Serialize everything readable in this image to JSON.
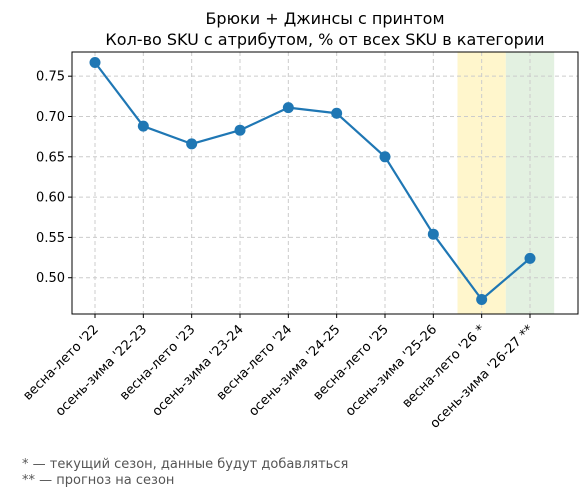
{
  "chart_data": {
    "type": "line",
    "title": "Брюки + Джинсы с принтом",
    "subtitle": "Кол-во SKU с атрибутом, % от всех SKU в категории",
    "xlabel": "",
    "ylabel": "",
    "categories": [
      "весна-лето '22",
      "осень-зима '22-23",
      "весна-лето '23",
      "осень-зима '23-24",
      "весна-лето '24",
      "осень-зима '24-25",
      "весна-лето '25",
      "осень-зима '25-26",
      "весна-лето '26 *",
      "осень-зима '26-27 **"
    ],
    "series": [
      {
        "values": [
          0.767,
          0.688,
          0.666,
          0.683,
          0.711,
          0.704,
          0.65,
          0.554,
          0.473,
          0.524
        ]
      }
    ],
    "ylim": [
      0.455,
      0.78
    ],
    "yticks": [
      0.5,
      0.55,
      0.6,
      0.65,
      0.7,
      0.75
    ],
    "ytick_labels": [
      "0.50",
      "0.55",
      "0.60",
      "0.65",
      "0.70",
      "0.75"
    ],
    "grid": true,
    "line_color": "#1f77b4",
    "highlights": [
      {
        "category_index": 8,
        "color": "#fff6cc",
        "meaning": "current season"
      },
      {
        "category_index": 9,
        "color": "#e3f1e1",
        "meaning": "forecast"
      }
    ]
  },
  "footnotes": [
    "* — текущий сезон, данные будут добавляться",
    "** — прогноз на сезон"
  ]
}
